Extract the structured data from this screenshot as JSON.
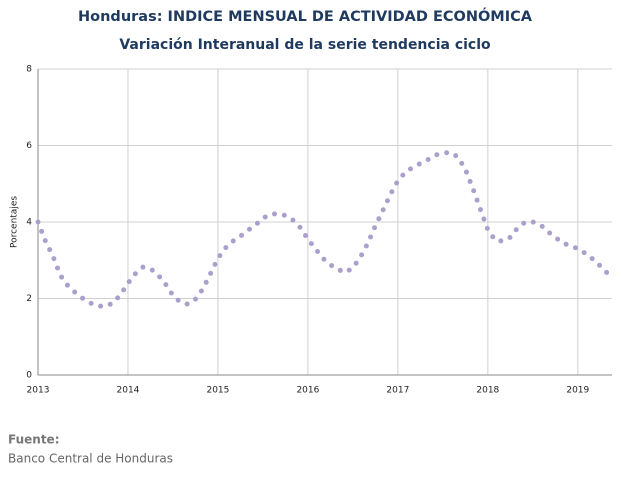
{
  "chart_data": {
    "type": "line",
    "title": "Honduras: INDICE MENSUAL DE ACTIVIDAD ECONÓMICA",
    "subtitle": "Variación Interanual de la serie tendencia ciclo",
    "y_label": "Porcentajes",
    "color": "#ab9fcc",
    "x": [
      2013,
      2013.083,
      2013.167,
      2013.25,
      2013.333,
      2013.417,
      2013.5,
      2013.583,
      2013.667,
      2013.75,
      2013.833,
      2013.917,
      2014,
      2014.083,
      2014.167,
      2014.25,
      2014.333,
      2014.417,
      2014.5,
      2014.583,
      2014.667,
      2014.75,
      2014.833,
      2014.917,
      2015,
      2015.083,
      2015.167,
      2015.25,
      2015.333,
      2015.417,
      2015.5,
      2015.583,
      2015.667,
      2015.75,
      2015.833,
      2015.917,
      2016,
      2016.083,
      2016.167,
      2016.25,
      2016.333,
      2016.417,
      2016.5,
      2016.583,
      2016.667,
      2016.75,
      2016.833,
      2016.917,
      2017,
      2017.083,
      2017.167,
      2017.25,
      2017.333,
      2017.417,
      2017.5,
      2017.583,
      2017.667,
      2017.75,
      2017.833,
      2017.917,
      2018,
      2018.083,
      2018.167,
      2018.25,
      2018.333,
      2018.417,
      2018.5,
      2018.583,
      2018.667,
      2018.75,
      2018.833,
      2018.917,
      2019,
      2019.083,
      2019.167,
      2019.25,
      2019.333
    ],
    "values": [
      4.0,
      3.5,
      3.1,
      2.6,
      2.33,
      2.15,
      2.0,
      1.88,
      1.8,
      1.8,
      1.88,
      2.1,
      2.4,
      2.65,
      2.82,
      2.78,
      2.62,
      2.38,
      2.08,
      1.9,
      1.85,
      1.98,
      2.25,
      2.65,
      3.05,
      3.32,
      3.5,
      3.63,
      3.78,
      3.92,
      4.1,
      4.2,
      4.22,
      4.17,
      4.05,
      3.85,
      3.55,
      3.3,
      3.05,
      2.88,
      2.76,
      2.68,
      2.8,
      3.08,
      3.45,
      3.9,
      4.3,
      4.72,
      5.08,
      5.3,
      5.43,
      5.53,
      5.63,
      5.75,
      5.8,
      5.82,
      5.7,
      5.38,
      4.88,
      4.33,
      3.8,
      3.52,
      3.5,
      3.6,
      3.85,
      4.0,
      4.0,
      3.93,
      3.75,
      3.6,
      3.45,
      3.38,
      3.3,
      3.18,
      3.03,
      2.85,
      2.65
    ],
    "xlim": [
      2013,
      2019.38
    ],
    "xticks": [
      2013,
      2014,
      2015,
      2016,
      2017,
      2018,
      2019
    ],
    "ylim": [
      0,
      8
    ],
    "yticks": [
      0,
      2,
      4,
      6,
      8
    ],
    "grid": true
  },
  "footer": {
    "label": "Fuente:",
    "source": "Banco Central de Honduras"
  }
}
